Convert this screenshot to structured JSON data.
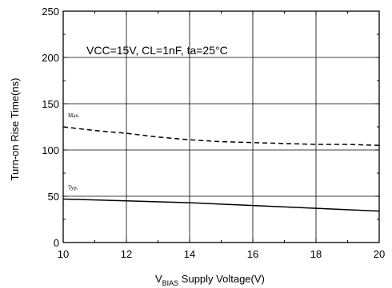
{
  "chart_data": {
    "type": "line",
    "xlabel_main": "V",
    "xlabel_sub": "BIAS",
    "xlabel_rest": " Supply Voltage(V)",
    "ylabel": "Turn-on Rise Time(ns)",
    "annotation": "VCC=15V, CL=1nF, ta=25°C",
    "xlim": [
      10,
      20
    ],
    "ylim": [
      0,
      250
    ],
    "x_ticks": [
      10,
      12,
      14,
      16,
      18,
      20
    ],
    "y_ticks": [
      0,
      50,
      100,
      150,
      200,
      250
    ],
    "grid": true,
    "series": [
      {
        "name": "Max.",
        "style": "dashed",
        "x": [
          10,
          11,
          12,
          13,
          14,
          15,
          16,
          17,
          18,
          19,
          20
        ],
        "values": [
          125,
          121,
          118,
          114,
          111,
          109,
          108,
          107,
          106,
          106,
          105
        ]
      },
      {
        "name": "Typ.",
        "style": "solid",
        "x": [
          10,
          12,
          14,
          16,
          18,
          20
        ],
        "values": [
          47,
          45,
          43,
          40,
          37,
          34
        ]
      }
    ]
  },
  "colors": {
    "line": "#000000",
    "grid": "#000000",
    "background": "#ffffff"
  }
}
